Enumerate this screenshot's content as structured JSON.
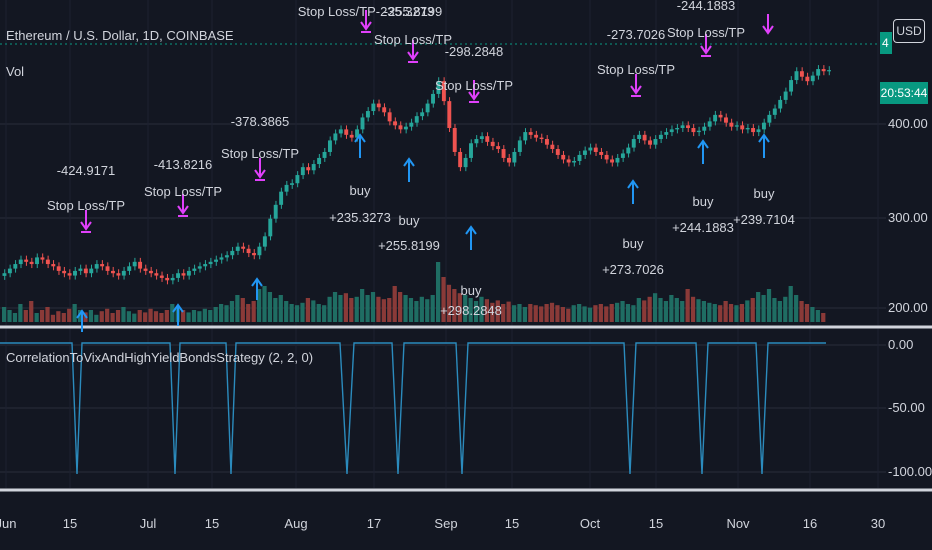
{
  "header": {
    "symbol_title": "Ethereum / U.S. Dollar, 1D, COINBASE",
    "volume_label": "Vol",
    "indicator_label": "CorrelationToVixAndHighYieldBondsStrategy (2, 2, 0)",
    "currency_button": "USD",
    "countdown": "20:53:44",
    "last_price_partial": "4"
  },
  "colors": {
    "background": "#131722",
    "up": "#26a69a",
    "down": "#ef5350",
    "volume_up": "#1f6d63",
    "volume_down": "#8a3a38",
    "buy_marker": "#2196f3",
    "exit_marker": "#e040fb",
    "indicator_line": "#2b8bbd",
    "last_price_line": "#089981",
    "grid": "#2a2e39"
  },
  "chart_data": [
    {
      "type": "candlestick",
      "title": "Ethereum / U.S. Dollar, 1D, COINBASE",
      "y_axis": {
        "ticks": [
          "400.00",
          "300.00",
          "200.00"
        ],
        "scale": "log"
      },
      "x_axis": {
        "ticks": [
          "Jun",
          "15",
          "Jul",
          "15",
          "Aug",
          "17",
          "Sep",
          "15",
          "Oct",
          "15",
          "Nov",
          "16",
          "30"
        ]
      },
      "close_series_approx": [
        228,
        232,
        236,
        240,
        238,
        236,
        242,
        240,
        236,
        234,
        230,
        228,
        226,
        230,
        232,
        228,
        232,
        236,
        234,
        230,
        228,
        226,
        230,
        234,
        238,
        232,
        230,
        228,
        226,
        224,
        222,
        224,
        228,
        226,
        230,
        232,
        234,
        236,
        238,
        240,
        242,
        244,
        248,
        252,
        250,
        246,
        244,
        252,
        262,
        280,
        295,
        310,
        318,
        320,
        330,
        340,
        336,
        344,
        352,
        360,
        376,
        386,
        392,
        384,
        380,
        392,
        410,
        420,
        432,
        426,
        418,
        404,
        398,
        392,
        396,
        402,
        412,
        418,
        432,
        448,
        470,
        436,
        394,
        360,
        340,
        352,
        372,
        378,
        382,
        374,
        368,
        364,
        352,
        346,
        360,
        376,
        388,
        384,
        380,
        378,
        370,
        364,
        356,
        350,
        346,
        348,
        356,
        362,
        366,
        360,
        356,
        350,
        346,
        352,
        358,
        366,
        378,
        384,
        376,
        370,
        378,
        384,
        388,
        392,
        394,
        398,
        394,
        388,
        390,
        396,
        404,
        414,
        410,
        402,
        396,
        398,
        392,
        394,
        388,
        392,
        402,
        414,
        424,
        438,
        452,
        472,
        488,
        478,
        470,
        480,
        492,
        488,
        490
      ],
      "volume_series_approx": [
        0.25,
        0.2,
        0.15,
        0.3,
        0.2,
        0.35,
        0.15,
        0.2,
        0.25,
        0.12,
        0.18,
        0.15,
        0.22,
        0.3,
        0.2,
        0.16,
        0.2,
        0.12,
        0.18,
        0.22,
        0.15,
        0.2,
        0.25,
        0.18,
        0.14,
        0.2,
        0.16,
        0.22,
        0.18,
        0.15,
        0.2,
        0.3,
        0.25,
        0.2,
        0.16,
        0.2,
        0.18,
        0.22,
        0.2,
        0.25,
        0.3,
        0.28,
        0.35,
        0.45,
        0.4,
        0.3,
        0.35,
        0.55,
        0.6,
        0.5,
        0.4,
        0.45,
        0.35,
        0.3,
        0.28,
        0.32,
        0.4,
        0.36,
        0.3,
        0.28,
        0.42,
        0.5,
        0.45,
        0.48,
        0.4,
        0.42,
        0.55,
        0.45,
        0.5,
        0.42,
        0.38,
        0.4,
        0.6,
        0.5,
        0.45,
        0.4,
        0.35,
        0.42,
        0.38,
        0.45,
        1.0,
        0.75,
        0.62,
        0.55,
        0.48,
        0.45,
        0.4,
        0.35,
        0.42,
        0.38,
        0.32,
        0.36,
        0.3,
        0.34,
        0.28,
        0.3,
        0.25,
        0.3,
        0.28,
        0.26,
        0.3,
        0.32,
        0.28,
        0.25,
        0.22,
        0.28,
        0.3,
        0.26,
        0.24,
        0.28,
        0.3,
        0.26,
        0.3,
        0.32,
        0.35,
        0.3,
        0.28,
        0.4,
        0.36,
        0.42,
        0.48,
        0.4,
        0.35,
        0.45,
        0.4,
        0.35,
        0.55,
        0.42,
        0.38,
        0.35,
        0.32,
        0.3,
        0.28,
        0.35,
        0.3,
        0.28,
        0.3,
        0.36,
        0.4,
        0.5,
        0.45,
        0.55,
        0.4,
        0.35,
        0.42,
        0.6,
        0.45,
        0.35,
        0.3,
        0.25,
        0.2,
        0.15
      ]
    },
    {
      "type": "line",
      "title": "CorrelationToVixAndHighYieldBondsStrategy (2, 2, 0)",
      "y_axis": {
        "ticks": [
          "0.00",
          "-50.00",
          "-100.00"
        ],
        "ylim": [
          -100,
          0
        ]
      },
      "dips_to_minus_100_around": [
        "Jun 17",
        "Jul 8",
        "Jul 21",
        "Aug 14",
        "Aug 25",
        "Sep 5",
        "Oct 10",
        "Oct 24",
        "Nov 3"
      ]
    }
  ],
  "trade_labels": [
    {
      "kind": "exit",
      "text1": "-424.9171",
      "text2": "Stop Loss/TP"
    },
    {
      "kind": "exit",
      "text1": "-413.8216",
      "text2": "Stop Loss/TP"
    },
    {
      "kind": "exit",
      "text1": "-378.3865",
      "text2": "Stop Loss/TP"
    },
    {
      "kind": "exit",
      "text1": "Stop Loss/TP-235.3273",
      "text2": ""
    },
    {
      "kind": "exit",
      "text1": "-255.8199",
      "text2": "Stop Loss/TP"
    },
    {
      "kind": "exit",
      "text1": "-298.2848",
      "text2": "Stop Loss/TP"
    },
    {
      "kind": "exit",
      "text1": "-273.7026",
      "text2": "Stop Loss/TP"
    },
    {
      "kind": "exit",
      "text1": "-244.1883",
      "text2": "Stop Loss/TP"
    },
    {
      "kind": "buy",
      "text1": "buy",
      "text2": "+235.3273"
    },
    {
      "kind": "buy",
      "text1": "buy",
      "text2": "+255.8199"
    },
    {
      "kind": "buy",
      "text1": "buy",
      "text2": "+298.2848"
    },
    {
      "kind": "buy",
      "text1": "buy",
      "text2": "+273.7026"
    },
    {
      "kind": "buy",
      "text1": "buy",
      "text2": "+244.1883"
    },
    {
      "kind": "buy",
      "text1": "buy",
      "text2": "+239.7104"
    }
  ]
}
